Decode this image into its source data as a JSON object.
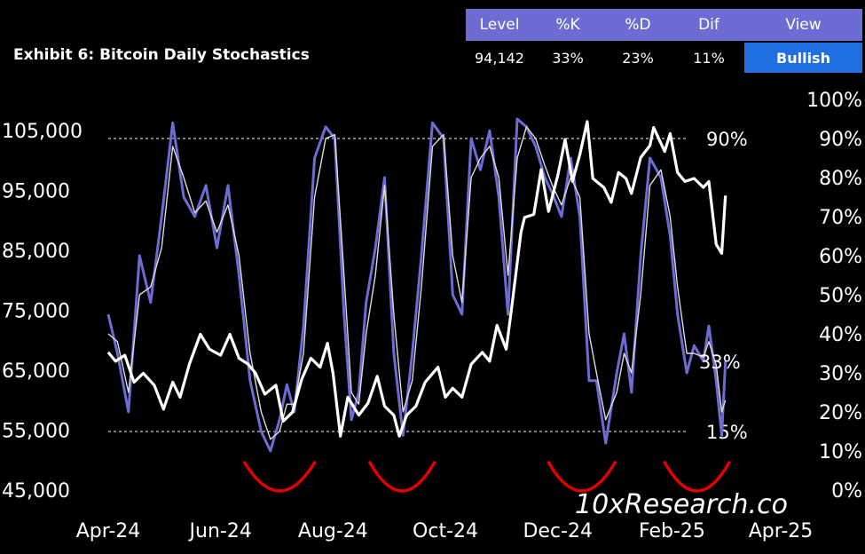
{
  "header": {
    "title": "Exhibit 6: Bitcoin Daily Stochastics",
    "columns": [
      "Level",
      "%K",
      "%D",
      "Dif",
      "View"
    ],
    "values": [
      "94,142",
      "33%",
      "23%",
      "11%",
      "Bullish"
    ]
  },
  "colors": {
    "background": "#000000",
    "price_line": "#ffffff",
    "k_line": "#6c6cd2",
    "d_line": "#dcdcdc",
    "arcs": "#e00000",
    "header_bar": "#6c6cd2",
    "view_badge": "#1f6fe0"
  },
  "chart_data": {
    "type": "line",
    "title": "Exhibit 6: Bitcoin Daily Stochastics",
    "x_tick_labels": [
      "Apr-24",
      "Jun-24",
      "Aug-24",
      "Oct-24",
      "Dec-24",
      "Feb-25",
      "Apr-25"
    ],
    "x_range": [
      "2024-04-01",
      "2025-04-01"
    ],
    "y_left": {
      "ticks": [
        "45,000",
        "55,000",
        "65,000",
        "75,000",
        "85,000",
        "95,000",
        "105,000"
      ],
      "range": [
        45000,
        105000
      ]
    },
    "y_right": {
      "ticks": [
        "0%",
        "10%",
        "20%",
        "30%",
        "40%",
        "50%",
        "60%",
        "70%",
        "80%",
        "90%",
        "100%"
      ],
      "range": [
        0,
        100
      ]
    },
    "reference_lines": [
      {
        "label": "90%",
        "value": 90
      },
      {
        "label": "15%",
        "value": 15
      }
    ],
    "current_k_label": "33%",
    "watermark": "10xResearch.co",
    "grid": false,
    "series": [
      {
        "key": "price",
        "axis": "left",
        "color": "#ffffff",
        "points": [
          [
            "2024-04-01",
            68000
          ],
          [
            "2024-04-05",
            66500
          ],
          [
            "2024-04-10",
            67500
          ],
          [
            "2024-04-15",
            63000
          ],
          [
            "2024-04-20",
            64500
          ],
          [
            "2024-04-26",
            62500
          ],
          [
            "2024-05-01",
            58500
          ],
          [
            "2024-05-06",
            63000
          ],
          [
            "2024-05-10",
            60500
          ],
          [
            "2024-05-15",
            66000
          ],
          [
            "2024-05-21",
            71000
          ],
          [
            "2024-05-26",
            68500
          ],
          [
            "2024-06-01",
            67500
          ],
          [
            "2024-06-06",
            71000
          ],
          [
            "2024-06-11",
            67000
          ],
          [
            "2024-06-16",
            66000
          ],
          [
            "2024-06-20",
            64500
          ],
          [
            "2024-06-25",
            61000
          ],
          [
            "2024-07-01",
            62500
          ],
          [
            "2024-07-05",
            56500
          ],
          [
            "2024-07-10",
            58000
          ],
          [
            "2024-07-15",
            63500
          ],
          [
            "2024-07-20",
            67000
          ],
          [
            "2024-07-25",
            65500
          ],
          [
            "2024-07-29",
            69500
          ],
          [
            "2024-08-01",
            64500
          ],
          [
            "2024-08-05",
            54000
          ],
          [
            "2024-08-09",
            60500
          ],
          [
            "2024-08-15",
            57500
          ],
          [
            "2024-08-20",
            59500
          ],
          [
            "2024-08-25",
            64000
          ],
          [
            "2024-08-29",
            59000
          ],
          [
            "2024-09-03",
            57500
          ],
          [
            "2024-09-06",
            54000
          ],
          [
            "2024-09-10",
            57500
          ],
          [
            "2024-09-15",
            59000
          ],
          [
            "2024-09-20",
            63000
          ],
          [
            "2024-09-27",
            65500
          ],
          [
            "2024-10-01",
            60500
          ],
          [
            "2024-10-05",
            62000
          ],
          [
            "2024-10-10",
            60500
          ],
          [
            "2024-10-15",
            66000
          ],
          [
            "2024-10-21",
            68000
          ],
          [
            "2024-10-25",
            66500
          ],
          [
            "2024-10-29",
            72500
          ],
          [
            "2024-11-03",
            68500
          ],
          [
            "2024-11-06",
            75500
          ],
          [
            "2024-11-11",
            88000
          ],
          [
            "2024-11-13",
            90500
          ],
          [
            "2024-11-18",
            91000
          ],
          [
            "2024-11-22",
            98500
          ],
          [
            "2024-11-26",
            91500
          ],
          [
            "2024-12-01",
            97500
          ],
          [
            "2024-12-05",
            103500
          ],
          [
            "2024-12-09",
            96500
          ],
          [
            "2024-12-13",
            101000
          ],
          [
            "2024-12-17",
            106500
          ],
          [
            "2024-12-20",
            97000
          ],
          [
            "2024-12-26",
            95500
          ],
          [
            "2024-12-30",
            93000
          ],
          [
            "2025-01-03",
            98000
          ],
          [
            "2025-01-07",
            97000
          ],
          [
            "2025-01-10",
            94500
          ],
          [
            "2025-01-15",
            100500
          ],
          [
            "2025-01-20",
            102500
          ],
          [
            "2025-01-22",
            105500
          ],
          [
            "2025-01-28",
            101500
          ],
          [
            "2025-01-31",
            104500
          ],
          [
            "2025-02-04",
            98000
          ],
          [
            "2025-02-08",
            96500
          ],
          [
            "2025-02-13",
            97000
          ],
          [
            "2025-02-18",
            95500
          ],
          [
            "2025-02-21",
            96500
          ],
          [
            "2025-02-25",
            86000
          ],
          [
            "2025-02-28",
            84500
          ],
          [
            "2025-03-02",
            94142
          ]
        ]
      },
      {
        "key": "k",
        "axis": "right",
        "color": "#6c6cd2",
        "points": [
          [
            "2024-04-01",
            45
          ],
          [
            "2024-04-06",
            35
          ],
          [
            "2024-04-12",
            20
          ],
          [
            "2024-04-18",
            60
          ],
          [
            "2024-04-24",
            48
          ],
          [
            "2024-04-30",
            70
          ],
          [
            "2024-05-06",
            94
          ],
          [
            "2024-05-12",
            75
          ],
          [
            "2024-05-18",
            70
          ],
          [
            "2024-05-24",
            78
          ],
          [
            "2024-05-30",
            62
          ],
          [
            "2024-06-05",
            78
          ],
          [
            "2024-06-11",
            55
          ],
          [
            "2024-06-17",
            28
          ],
          [
            "2024-06-23",
            15
          ],
          [
            "2024-06-28",
            10
          ],
          [
            "2024-07-03",
            18
          ],
          [
            "2024-07-07",
            27
          ],
          [
            "2024-07-11",
            20
          ],
          [
            "2024-07-16",
            42
          ],
          [
            "2024-07-22",
            85
          ],
          [
            "2024-07-28",
            93
          ],
          [
            "2024-08-02",
            90
          ],
          [
            "2024-08-07",
            45
          ],
          [
            "2024-08-11",
            18
          ],
          [
            "2024-08-15",
            25
          ],
          [
            "2024-08-19",
            48
          ],
          [
            "2024-08-24",
            62
          ],
          [
            "2024-08-29",
            80
          ],
          [
            "2024-09-03",
            35
          ],
          [
            "2024-09-08",
            14
          ],
          [
            "2024-09-13",
            35
          ],
          [
            "2024-09-18",
            60
          ],
          [
            "2024-09-24",
            94
          ],
          [
            "2024-09-30",
            90
          ],
          [
            "2024-10-05",
            50
          ],
          [
            "2024-10-10",
            45
          ],
          [
            "2024-10-15",
            90
          ],
          [
            "2024-10-20",
            82
          ],
          [
            "2024-10-25",
            92
          ],
          [
            "2024-10-30",
            75
          ],
          [
            "2024-11-04",
            45
          ],
          [
            "2024-11-09",
            95
          ],
          [
            "2024-11-14",
            93
          ],
          [
            "2024-11-19",
            88
          ],
          [
            "2024-11-24",
            80
          ],
          [
            "2024-11-28",
            76
          ],
          [
            "2024-12-03",
            70
          ],
          [
            "2024-12-08",
            85
          ],
          [
            "2024-12-13",
            70
          ],
          [
            "2024-12-18",
            28
          ],
          [
            "2024-12-22",
            28
          ],
          [
            "2024-12-27",
            12
          ],
          [
            "2025-01-02",
            30
          ],
          [
            "2025-01-06",
            40
          ],
          [
            "2025-01-10",
            25
          ],
          [
            "2025-01-15",
            60
          ],
          [
            "2025-01-20",
            85
          ],
          [
            "2025-01-26",
            80
          ],
          [
            "2025-01-31",
            65
          ],
          [
            "2025-02-04",
            45
          ],
          [
            "2025-02-09",
            30
          ],
          [
            "2025-02-13",
            37
          ],
          [
            "2025-02-18",
            33
          ],
          [
            "2025-02-21",
            42
          ],
          [
            "2025-02-25",
            28
          ],
          [
            "2025-02-28",
            14
          ],
          [
            "2025-03-02",
            33
          ]
        ]
      },
      {
        "key": "d",
        "axis": "right",
        "color": "#dcdcdc",
        "points": [
          [
            "2024-04-01",
            40
          ],
          [
            "2024-04-06",
            38
          ],
          [
            "2024-04-12",
            25
          ],
          [
            "2024-04-18",
            50
          ],
          [
            "2024-04-24",
            52
          ],
          [
            "2024-04-30",
            62
          ],
          [
            "2024-05-06",
            88
          ],
          [
            "2024-05-12",
            80
          ],
          [
            "2024-05-18",
            71
          ],
          [
            "2024-05-24",
            74
          ],
          [
            "2024-05-30",
            66
          ],
          [
            "2024-06-05",
            73
          ],
          [
            "2024-06-11",
            60
          ],
          [
            "2024-06-17",
            35
          ],
          [
            "2024-06-23",
            20
          ],
          [
            "2024-06-28",
            13
          ],
          [
            "2024-07-03",
            15
          ],
          [
            "2024-07-07",
            22
          ],
          [
            "2024-07-11",
            22
          ],
          [
            "2024-07-16",
            35
          ],
          [
            "2024-07-22",
            75
          ],
          [
            "2024-07-28",
            90
          ],
          [
            "2024-08-02",
            91
          ],
          [
            "2024-08-07",
            55
          ],
          [
            "2024-08-11",
            25
          ],
          [
            "2024-08-15",
            22
          ],
          [
            "2024-08-19",
            40
          ],
          [
            "2024-08-24",
            55
          ],
          [
            "2024-08-29",
            78
          ],
          [
            "2024-09-03",
            45
          ],
          [
            "2024-09-08",
            20
          ],
          [
            "2024-09-13",
            28
          ],
          [
            "2024-09-18",
            52
          ],
          [
            "2024-09-24",
            88
          ],
          [
            "2024-09-30",
            91
          ],
          [
            "2024-10-05",
            60
          ],
          [
            "2024-10-10",
            48
          ],
          [
            "2024-10-15",
            80
          ],
          [
            "2024-10-20",
            85
          ],
          [
            "2024-10-25",
            88
          ],
          [
            "2024-10-30",
            80
          ],
          [
            "2024-11-04",
            55
          ],
          [
            "2024-11-09",
            85
          ],
          [
            "2024-11-14",
            93
          ],
          [
            "2024-11-19",
            90
          ],
          [
            "2024-11-24",
            83
          ],
          [
            "2024-11-28",
            78
          ],
          [
            "2024-12-03",
            73
          ],
          [
            "2024-12-08",
            80
          ],
          [
            "2024-12-13",
            75
          ],
          [
            "2024-12-18",
            40
          ],
          [
            "2024-12-22",
            30
          ],
          [
            "2024-12-27",
            18
          ],
          [
            "2025-01-02",
            25
          ],
          [
            "2025-01-06",
            35
          ],
          [
            "2025-01-10",
            30
          ],
          [
            "2025-01-15",
            50
          ],
          [
            "2025-01-20",
            78
          ],
          [
            "2025-01-26",
            82
          ],
          [
            "2025-01-31",
            70
          ],
          [
            "2025-02-04",
            52
          ],
          [
            "2025-02-09",
            35
          ],
          [
            "2025-02-13",
            35
          ],
          [
            "2025-02-18",
            34
          ],
          [
            "2025-02-21",
            38
          ],
          [
            "2025-02-25",
            32
          ],
          [
            "2025-02-28",
            20
          ],
          [
            "2025-03-02",
            23
          ]
        ]
      }
    ],
    "highlighted_troughs": [
      [
        "2024-06-14",
        "2024-07-22"
      ],
      [
        "2024-08-21",
        "2024-09-25"
      ],
      [
        "2024-11-26",
        "2025-01-01"
      ],
      [
        "2025-01-28",
        "2025-03-04"
      ]
    ]
  }
}
